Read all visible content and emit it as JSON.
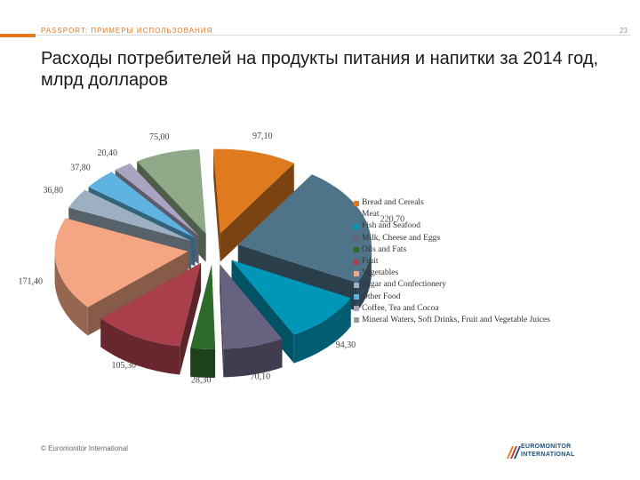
{
  "header": {
    "section_label": "PASSPORT: ПРИМЕРЫ ИСПОЛЬЗОВАНИЯ",
    "page_number": "23",
    "title": "Расходы потребителей на продукты питания и напитки за 2014 год, млрд долларов"
  },
  "chart_data": {
    "type": "pie",
    "title": "Расходы потребителей на продукты питания и напитки за 2014 год, млрд долларов",
    "categories": [
      "Bread and Cereals",
      "Meat",
      "Fish and Seafood",
      "Milk, Cheese and Eggs",
      "Oils and Fats",
      "Fruit",
      "Vegetables",
      "Sugar and Confectionery",
      "Other Food",
      "Coffee, Tea and Cocoa",
      "Mineral Waters, Soft Drinks, Fruit and Vegetable Juices"
    ],
    "values": [
      97.1,
      220.7,
      94.3,
      70.1,
      28.3,
      105.3,
      171.4,
      36.8,
      37.8,
      20.4,
      75.0
    ],
    "labels": [
      "97,10",
      "220,70",
      "94,30",
      "70,10",
      "28,30",
      "105,30",
      "171,40",
      "36,80",
      "37,80",
      "20,40",
      "75,00"
    ],
    "colors": [
      "#e07a1f",
      "#4f7389",
      "#0096b8",
      "#66627f",
      "#2e6b2b",
      "#a83f4a",
      "#f4a582",
      "#9cb0c1",
      "#5eb3e0",
      "#a8a4c2",
      "#8fa989"
    ],
    "legend_position": "right"
  },
  "footer": {
    "copyright": "© Euromonitor International",
    "logo_line1": "EUROMONITOR",
    "logo_line2": "INTERNATIONAL"
  }
}
